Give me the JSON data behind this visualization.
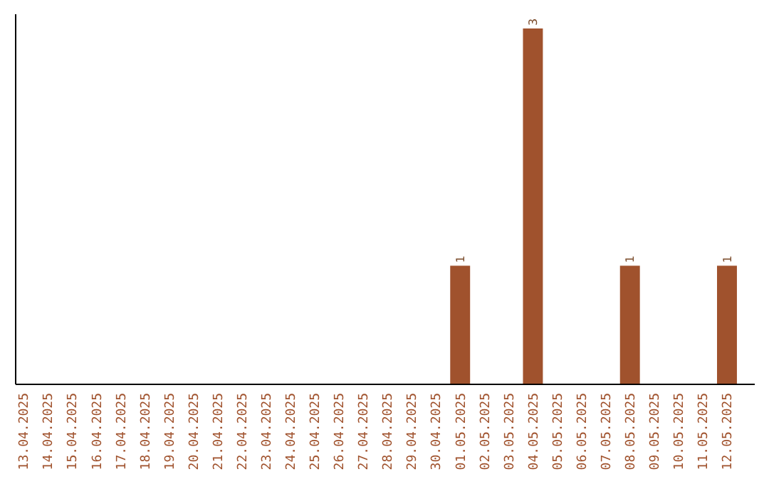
{
  "chart_data": {
    "type": "bar",
    "categories": [
      "13.04.2025",
      "14.04.2025",
      "15.04.2025",
      "16.04.2025",
      "17.04.2025",
      "18.04.2025",
      "19.04.2025",
      "20.04.2025",
      "21.04.2025",
      "22.04.2025",
      "23.04.2025",
      "24.04.2025",
      "25.04.2025",
      "26.04.2025",
      "27.04.2025",
      "28.04.2025",
      "29.04.2025",
      "30.04.2025",
      "01.05.2025",
      "02.05.2025",
      "03.05.2025",
      "04.05.2025",
      "05.05.2025",
      "06.05.2025",
      "07.05.2025",
      "08.05.2025",
      "09.05.2025",
      "10.05.2025",
      "11.05.2025",
      "12.05.2025"
    ],
    "values": [
      null,
      null,
      null,
      null,
      null,
      null,
      null,
      null,
      null,
      null,
      null,
      null,
      null,
      null,
      null,
      null,
      null,
      null,
      1,
      null,
      null,
      3,
      null,
      null,
      null,
      1,
      null,
      null,
      null,
      1
    ],
    "value_labels": [
      null,
      null,
      null,
      null,
      null,
      null,
      null,
      null,
      null,
      null,
      null,
      null,
      null,
      null,
      null,
      null,
      null,
      null,
      "1",
      null,
      null,
      "3",
      null,
      null,
      null,
      "1",
      null,
      null,
      null,
      "1"
    ],
    "color": "#a0522d",
    "ylim": [
      0,
      3.12
    ],
    "tick_labels": "x"
  }
}
